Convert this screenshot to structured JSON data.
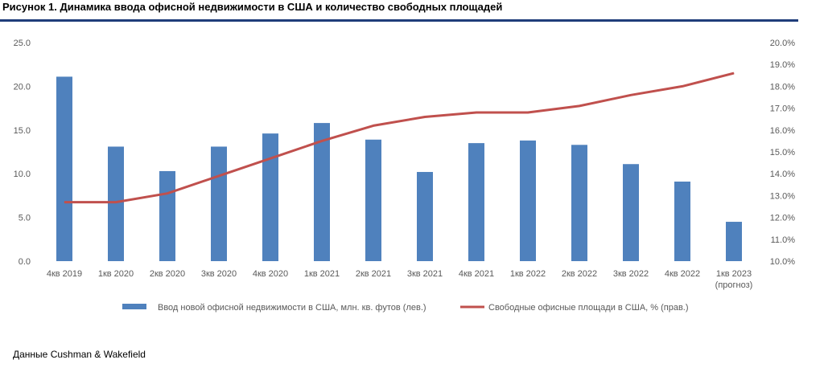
{
  "title": "Рисунок 1. Динамика ввода офисной недвижимости в США и количество свободных площадей",
  "source": "Данные Cushman & Wakefield",
  "chart_data": {
    "type": "bar",
    "categories": [
      "4кв 2019",
      "1кв 2020",
      "2кв 2020",
      "3кв 2020",
      "4кв 2020",
      "1кв 2021",
      "2кв 2021",
      "3кв 2021",
      "4кв 2021",
      "1кв 2022",
      "2кв 2022",
      "3кв 2022",
      "4кв 2022",
      "1кв 2023"
    ],
    "category_sublabels": [
      "",
      "",
      "",
      "",
      "",
      "",
      "",
      "",
      "",
      "",
      "",
      "",
      "",
      "(прогноз)"
    ],
    "series": [
      {
        "name": "Ввод новой офисной недвижимости в США, млн. кв. футов (лев.)",
        "type": "bar",
        "axis": "left",
        "color": "#4f81bd",
        "values": [
          21.1,
          13.1,
          10.3,
          13.1,
          14.6,
          15.8,
          13.9,
          10.2,
          13.5,
          13.8,
          13.3,
          11.1,
          9.1,
          4.5
        ]
      },
      {
        "name": "Свободные офисные площади в США, % (прав.)",
        "type": "line",
        "axis": "right",
        "color": "#c0504d",
        "values": [
          12.7,
          12.7,
          13.1,
          13.9,
          14.7,
          15.5,
          16.2,
          16.6,
          16.8,
          16.8,
          17.1,
          17.6,
          18.0,
          18.6
        ]
      }
    ],
    "y_left": {
      "ylim": [
        0,
        25
      ],
      "ticks": [
        "0.0",
        "5.0",
        "10.0",
        "15.0",
        "20.0",
        "25.0"
      ]
    },
    "y_right": {
      "ylim": [
        10,
        20
      ],
      "ticks": [
        "10.0%",
        "11.0%",
        "12.0%",
        "13.0%",
        "14.0%",
        "15.0%",
        "16.0%",
        "17.0%",
        "18.0%",
        "19.0%",
        "20.0%"
      ]
    },
    "grid": false,
    "legend_position": "bottom"
  }
}
